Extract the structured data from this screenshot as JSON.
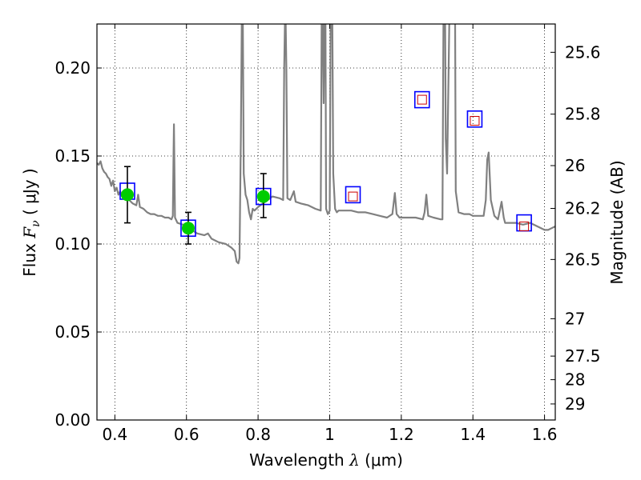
{
  "chart_data": {
    "type": "scatter",
    "title": "",
    "xlabel": "Wavelength  λ (μm)",
    "ylabel": "Flux  F_ν  ( μJy )",
    "ylabel_parts": {
      "prefix": "Flux",
      "symbol": "F",
      "subscript": "ν",
      "unit": "( μJy )"
    },
    "xlabel_parts": {
      "prefix": "Wavelength",
      "symbol": "λ",
      "unit": "(μm)"
    },
    "y2label": "Magnitude (AB)",
    "xlim": [
      0.35,
      1.63
    ],
    "ylim": [
      0.0,
      0.225
    ],
    "grid": true,
    "x_ticks": [
      {
        "value": 0.4,
        "label": "0.4"
      },
      {
        "value": 0.6,
        "label": "0.6"
      },
      {
        "value": 0.8,
        "label": "0.8"
      },
      {
        "value": 1.0,
        "label": "1"
      },
      {
        "value": 1.2,
        "label": "1.2"
      },
      {
        "value": 1.4,
        "label": "1.4"
      },
      {
        "value": 1.6,
        "label": "1.6"
      }
    ],
    "y_ticks": [
      {
        "value": 0.0,
        "label": "0.00"
      },
      {
        "value": 0.05,
        "label": "0.05"
      },
      {
        "value": 0.1,
        "label": "0.10"
      },
      {
        "value": 0.15,
        "label": "0.15"
      },
      {
        "value": 0.2,
        "label": "0.20"
      }
    ],
    "y2_ticks": [
      {
        "value": 25.6,
        "label": "25.6"
      },
      {
        "value": 25.8,
        "label": "25.8"
      },
      {
        "value": 26.0,
        "label": "26"
      },
      {
        "value": 26.2,
        "label": "26.2"
      },
      {
        "value": 26.5,
        "label": "26.5"
      },
      {
        "value": 27.0,
        "label": "27"
      },
      {
        "value": 27.5,
        "label": "27.5"
      },
      {
        "value": 28.0,
        "label": "28"
      },
      {
        "value": 29.0,
        "label": "29"
      }
    ],
    "y2_scale": "AB magnitude (m = 23.9 − 2.5·log10 Fν[μJy])",
    "series": [
      {
        "kind": "line",
        "color": "#808080",
        "points": [
          [
            0.35,
            0.146
          ],
          [
            0.355,
            0.145
          ],
          [
            0.36,
            0.147
          ],
          [
            0.365,
            0.143
          ],
          [
            0.37,
            0.141
          ],
          [
            0.375,
            0.14
          ],
          [
            0.38,
            0.138
          ],
          [
            0.385,
            0.137
          ],
          [
            0.39,
            0.133
          ],
          [
            0.395,
            0.136
          ],
          [
            0.4,
            0.13
          ],
          [
            0.405,
            0.132
          ],
          [
            0.41,
            0.128
          ],
          [
            0.415,
            0.13
          ],
          [
            0.42,
            0.127
          ],
          [
            0.43,
            0.126
          ],
          [
            0.44,
            0.125
          ],
          [
            0.45,
            0.123
          ],
          [
            0.46,
            0.122
          ],
          [
            0.465,
            0.128
          ],
          [
            0.47,
            0.121
          ],
          [
            0.48,
            0.12
          ],
          [
            0.49,
            0.118
          ],
          [
            0.5,
            0.117
          ],
          [
            0.51,
            0.117
          ],
          [
            0.52,
            0.116
          ],
          [
            0.53,
            0.116
          ],
          [
            0.54,
            0.115
          ],
          [
            0.55,
            0.115
          ],
          [
            0.558,
            0.114
          ],
          [
            0.562,
            0.116
          ],
          [
            0.564,
            0.152
          ],
          [
            0.565,
            0.168
          ],
          [
            0.566,
            0.152
          ],
          [
            0.568,
            0.115
          ],
          [
            0.575,
            0.112
          ],
          [
            0.59,
            0.111
          ],
          [
            0.6,
            0.11
          ],
          [
            0.615,
            0.108
          ],
          [
            0.63,
            0.106
          ],
          [
            0.65,
            0.105
          ],
          [
            0.66,
            0.106
          ],
          [
            0.67,
            0.103
          ],
          [
            0.69,
            0.101
          ],
          [
            0.71,
            0.1
          ],
          [
            0.725,
            0.098
          ],
          [
            0.735,
            0.096
          ],
          [
            0.74,
            0.09
          ],
          [
            0.745,
            0.089
          ],
          [
            0.748,
            0.092
          ],
          [
            0.752,
            0.16
          ],
          [
            0.755,
            0.24
          ],
          [
            0.757,
            0.24
          ],
          [
            0.76,
            0.14
          ],
          [
            0.765,
            0.128
          ],
          [
            0.77,
            0.125
          ],
          [
            0.775,
            0.118
          ],
          [
            0.78,
            0.114
          ],
          [
            0.785,
            0.12
          ],
          [
            0.79,
            0.119
          ],
          [
            0.8,
            0.121
          ],
          [
            0.82,
            0.124
          ],
          [
            0.84,
            0.127
          ],
          [
            0.86,
            0.126
          ],
          [
            0.87,
            0.125
          ],
          [
            0.873,
            0.2
          ],
          [
            0.876,
            0.24
          ],
          [
            0.879,
            0.2
          ],
          [
            0.882,
            0.126
          ],
          [
            0.89,
            0.125
          ],
          [
            0.9,
            0.13
          ],
          [
            0.905,
            0.124
          ],
          [
            0.92,
            0.123
          ],
          [
            0.94,
            0.122
          ],
          [
            0.96,
            0.12
          ],
          [
            0.975,
            0.119
          ],
          [
            0.978,
            0.24
          ],
          [
            0.98,
            0.24
          ],
          [
            0.983,
            0.18
          ],
          [
            0.986,
            0.24
          ],
          [
            0.988,
            0.24
          ],
          [
            0.99,
            0.12
          ],
          [
            0.995,
            0.117
          ],
          [
            1.0,
            0.119
          ],
          [
            1.003,
            0.24
          ],
          [
            1.007,
            0.24
          ],
          [
            1.01,
            0.14
          ],
          [
            1.015,
            0.12
          ],
          [
            1.02,
            0.118
          ],
          [
            1.025,
            0.119
          ],
          [
            1.06,
            0.119
          ],
          [
            1.08,
            0.118
          ],
          [
            1.1,
            0.118
          ],
          [
            1.12,
            0.117
          ],
          [
            1.14,
            0.116
          ],
          [
            1.16,
            0.115
          ],
          [
            1.175,
            0.117
          ],
          [
            1.182,
            0.129
          ],
          [
            1.187,
            0.117
          ],
          [
            1.195,
            0.115
          ],
          [
            1.22,
            0.115
          ],
          [
            1.24,
            0.115
          ],
          [
            1.26,
            0.114
          ],
          [
            1.265,
            0.118
          ],
          [
            1.27,
            0.128
          ],
          [
            1.275,
            0.116
          ],
          [
            1.29,
            0.115
          ],
          [
            1.31,
            0.114
          ],
          [
            1.315,
            0.114
          ],
          [
            1.318,
            0.24
          ],
          [
            1.322,
            0.24
          ],
          [
            1.324,
            0.16
          ],
          [
            1.328,
            0.14
          ],
          [
            1.335,
            0.24
          ],
          [
            1.35,
            0.24
          ],
          [
            1.352,
            0.13
          ],
          [
            1.36,
            0.118
          ],
          [
            1.375,
            0.117
          ],
          [
            1.39,
            0.117
          ],
          [
            1.4,
            0.116
          ],
          [
            1.43,
            0.116
          ],
          [
            1.436,
            0.125
          ],
          [
            1.44,
            0.148
          ],
          [
            1.444,
            0.152
          ],
          [
            1.45,
            0.125
          ],
          [
            1.46,
            0.116
          ],
          [
            1.47,
            0.114
          ],
          [
            1.48,
            0.124
          ],
          [
            1.486,
            0.115
          ],
          [
            1.49,
            0.112
          ],
          [
            1.52,
            0.112
          ],
          [
            1.54,
            0.111
          ],
          [
            1.56,
            0.112
          ],
          [
            1.58,
            0.11
          ],
          [
            1.6,
            0.108
          ],
          [
            1.61,
            0.108
          ],
          [
            1.62,
            0.109
          ],
          [
            1.63,
            0.11
          ]
        ]
      },
      {
        "kind": "model-photometry",
        "marker": "square-open",
        "color": "#0000ff",
        "points": [
          [
            0.435,
            0.13
          ],
          [
            0.605,
            0.109
          ],
          [
            0.815,
            0.127
          ],
          [
            1.065,
            0.128
          ],
          [
            1.258,
            0.182
          ],
          [
            1.405,
            0.171
          ],
          [
            1.543,
            0.112
          ]
        ]
      },
      {
        "kind": "observed-detections",
        "marker": "circle-filled",
        "color": "#00cc00",
        "points": [
          {
            "x": 0.435,
            "y": 0.128,
            "ylow": 0.112,
            "yhigh": 0.144
          },
          {
            "x": 0.605,
            "y": 0.109,
            "ylow": 0.1,
            "yhigh": 0.118
          },
          {
            "x": 0.815,
            "y": 0.127,
            "ylow": 0.115,
            "yhigh": 0.14
          }
        ]
      },
      {
        "kind": "observed-other",
        "marker": "square-open-small",
        "color": "#cc0000",
        "points": [
          [
            1.065,
            0.127
          ],
          [
            1.258,
            0.182
          ],
          [
            1.405,
            0.17
          ],
          [
            1.543,
            0.11
          ]
        ]
      }
    ]
  }
}
